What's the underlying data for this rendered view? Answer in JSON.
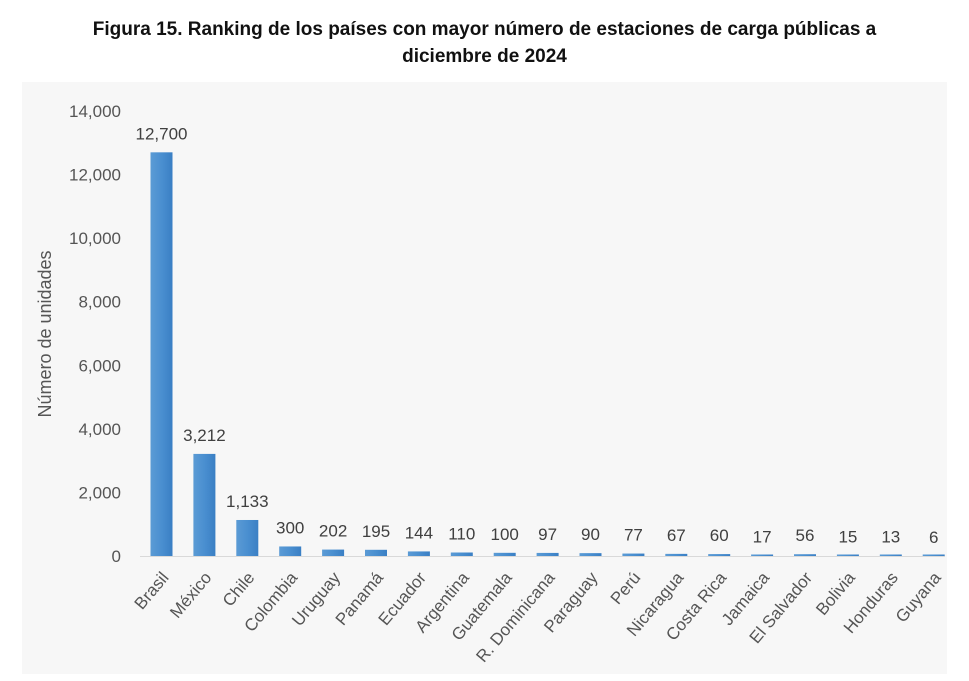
{
  "chart_data": {
    "type": "bar",
    "title_line1": "Figura 15. Ranking de los países con mayor número de estaciones de carga públicas a",
    "title_line2": "diciembre de 2024",
    "xlabel": "",
    "ylabel": "Número de unidades",
    "ylim": [
      0,
      14000
    ],
    "yticks": [
      0,
      2000,
      4000,
      6000,
      8000,
      10000,
      12000,
      14000
    ],
    "ytick_labels": [
      "0",
      "2,000",
      "4,000",
      "6,000",
      "8,000",
      "10,000",
      "12,000",
      "14,000"
    ],
    "grid": false,
    "categories": [
      "Brasil",
      "México",
      "Chile",
      "Colombia",
      "Uruguay",
      "Panamá",
      "Ecuador",
      "Argentina",
      "Guatemala",
      "R. Dominicana",
      "Paraguay",
      "Perú",
      "Nicaragua",
      "Costa Rica",
      "Jamaica",
      "El Salvador",
      "Bolivia",
      "Honduras",
      "Guyana"
    ],
    "values": [
      12700,
      3212,
      1133,
      300,
      202,
      195,
      144,
      110,
      100,
      97,
      90,
      77,
      67,
      60,
      17,
      56,
      15,
      13,
      6
    ],
    "value_labels": [
      "12,700",
      "3,212",
      "1,133",
      "300",
      "202",
      "195",
      "144",
      "110",
      "100",
      "97",
      "90",
      "77",
      "67",
      "60",
      "17",
      "56",
      "15",
      "13",
      "6"
    ],
    "bar_color": "#4a8fd0"
  }
}
